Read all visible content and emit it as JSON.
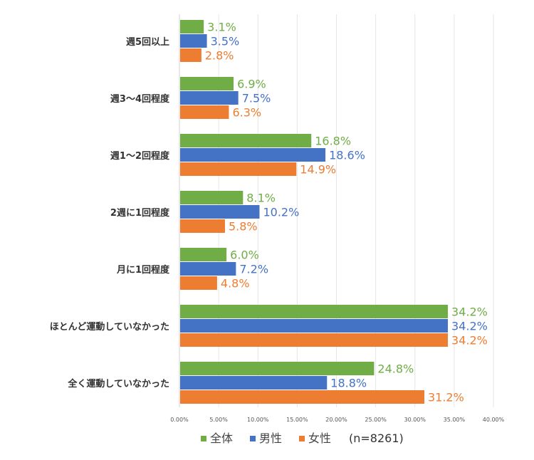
{
  "chart_data": {
    "type": "bar",
    "orientation": "horizontal",
    "categories": [
      "週5回以上",
      "週3～4回程度",
      "週1～2回程度",
      "2週に1回程度",
      "月に1回程度",
      "ほとんど運動していなかった",
      "全く運動していなかった"
    ],
    "series": [
      {
        "name": "全体",
        "color": "#70ad47",
        "values": [
          3.1,
          6.9,
          16.8,
          8.1,
          6.0,
          34.2,
          24.8
        ],
        "labels": [
          "3.1%",
          "6.9%",
          "16.8%",
          "8.1%",
          "6.0%",
          "34.2%",
          "24.8%"
        ]
      },
      {
        "name": "男性",
        "color": "#4472c4",
        "values": [
          3.5,
          7.5,
          18.6,
          10.2,
          7.2,
          34.2,
          18.8
        ],
        "labels": [
          "3.5%",
          "7.5%",
          "18.6%",
          "10.2%",
          "7.2%",
          "34.2%",
          "18.8%"
        ]
      },
      {
        "name": "女性",
        "color": "#ed7d31",
        "values": [
          2.8,
          6.3,
          14.9,
          5.8,
          4.8,
          34.2,
          31.2
        ],
        "labels": [
          "2.8%",
          "6.3%",
          "14.9%",
          "5.8%",
          "4.8%",
          "34.2%",
          "31.2%"
        ]
      }
    ],
    "xlim": [
      0,
      40
    ],
    "x_ticks": [
      "0.00%",
      "5.00%",
      "10.00%",
      "15.00%",
      "20.00%",
      "25.00%",
      "30.00%",
      "35.00%",
      "40.00%"
    ],
    "grid": true,
    "legend_position": "bottom",
    "legend_note": "(n=8261)"
  }
}
